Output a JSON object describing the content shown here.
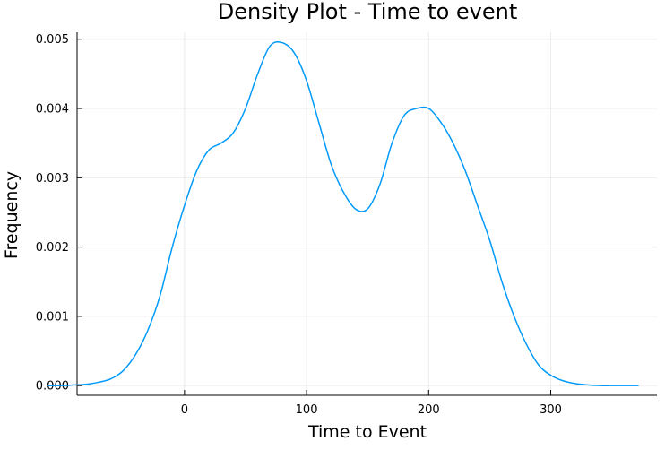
{
  "chart_data": {
    "type": "line",
    "title": "Density Plot - Time to event",
    "xlabel": "Time to Event",
    "ylabel": "Frequency",
    "xlim": [
      -88,
      387
    ],
    "ylim": [
      -0.00014,
      0.0051
    ],
    "xticks": [
      0,
      100,
      200,
      300
    ],
    "xtick_labels": [
      "0",
      "100",
      "200",
      "300"
    ],
    "yticks": [
      0.0,
      0.001,
      0.002,
      0.003,
      0.004,
      0.005
    ],
    "ytick_labels": [
      "0.000",
      "0.001",
      "0.002",
      "0.003",
      "0.004",
      "0.005"
    ],
    "grid": true,
    "legend": "none",
    "series": [
      {
        "color": "#009af9",
        "x": [
          -112,
          -100,
          -90,
          -80,
          -70,
          -60,
          -50,
          -40,
          -30,
          -20,
          -10,
          0,
          10,
          20,
          30,
          40,
          50,
          60,
          70,
          80,
          90,
          100,
          110,
          120,
          130,
          140,
          150,
          160,
          170,
          180,
          190,
          200,
          210,
          220,
          230,
          240,
          250,
          260,
          270,
          280,
          290,
          300,
          310,
          320,
          330,
          340,
          350,
          360,
          372
        ],
        "y": [
          0.0,
          0.0,
          1e-05,
          2e-05,
          5e-05,
          0.0001,
          0.00022,
          0.00045,
          0.0008,
          0.0013,
          0.002,
          0.0026,
          0.0031,
          0.0034,
          0.0035,
          0.00365,
          0.004,
          0.0045,
          0.0049,
          0.00495,
          0.0048,
          0.0044,
          0.0038,
          0.0032,
          0.0028,
          0.00255,
          0.00255,
          0.0029,
          0.0035,
          0.0039,
          0.004,
          0.004,
          0.0038,
          0.0035,
          0.0031,
          0.0026,
          0.0021,
          0.0015,
          0.001,
          0.0006,
          0.0003,
          0.00015,
          7e-05,
          3e-05,
          1e-05,
          0.0,
          0.0,
          0.0,
          0.0
        ]
      }
    ]
  }
}
